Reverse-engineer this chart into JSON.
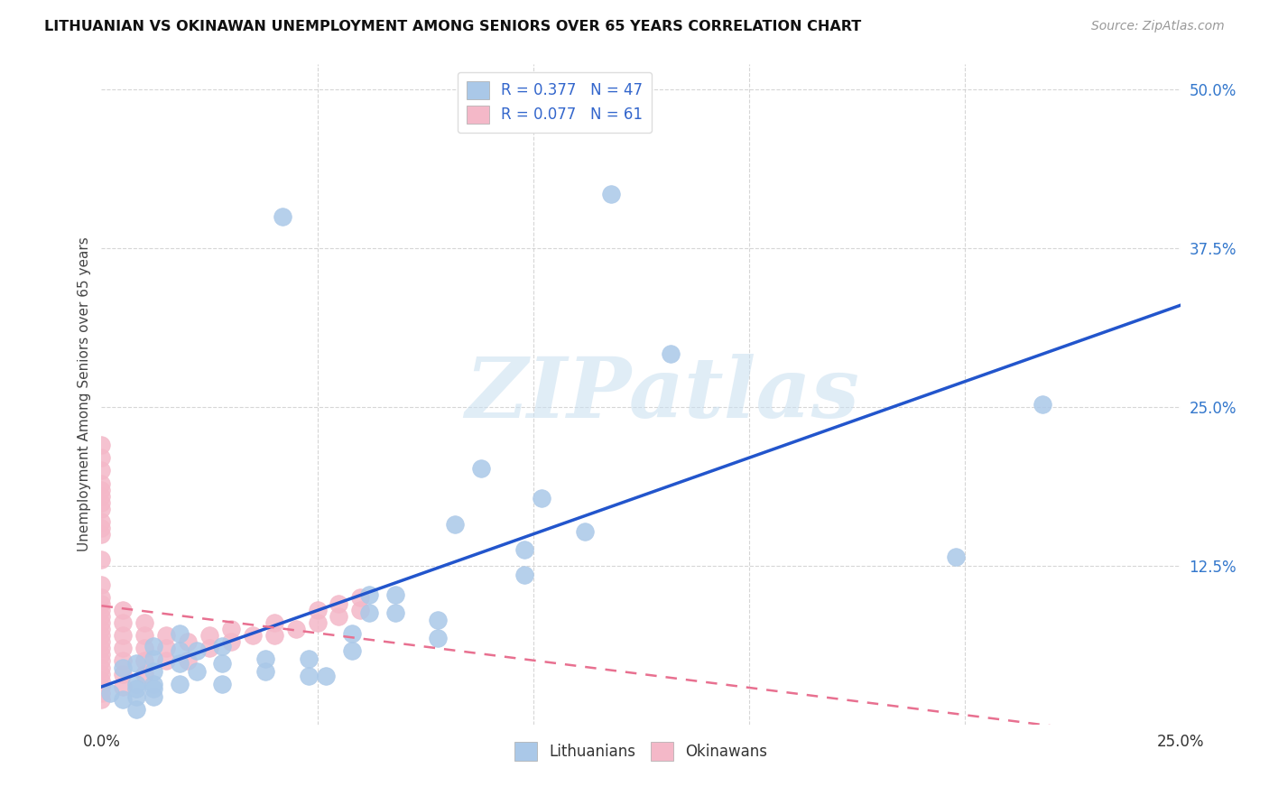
{
  "title": "LITHUANIAN VS OKINAWAN UNEMPLOYMENT AMONG SENIORS OVER 65 YEARS CORRELATION CHART",
  "source": "Source: ZipAtlas.com",
  "ylabel": "Unemployment Among Seniors over 65 years",
  "xlim": [
    0.0,
    0.25
  ],
  "ylim": [
    0.0,
    0.52
  ],
  "background_color": "#ffffff",
  "grid_color": "#cccccc",
  "scatter_blue_color": "#aac8e8",
  "scatter_blue_edge": "#aac8e8",
  "scatter_pink_color": "#f4b8c8",
  "scatter_pink_edge": "#f4b8c8",
  "trend_blue_color": "#2255cc",
  "trend_pink_color": "#e87090",
  "watermark_text": "ZIPatlas",
  "lit_R": 0.377,
  "lit_N": 47,
  "oki_R": 0.077,
  "oki_N": 61,
  "lit_x": [
    0.002,
    0.005,
    0.005,
    0.008,
    0.008,
    0.008,
    0.008,
    0.008,
    0.012,
    0.012,
    0.012,
    0.012,
    0.012,
    0.012,
    0.018,
    0.018,
    0.018,
    0.018,
    0.022,
    0.022,
    0.028,
    0.028,
    0.028,
    0.038,
    0.038,
    0.042,
    0.048,
    0.048,
    0.052,
    0.058,
    0.058,
    0.062,
    0.062,
    0.068,
    0.068,
    0.078,
    0.078,
    0.082,
    0.088,
    0.098,
    0.098,
    0.102,
    0.112,
    0.118,
    0.132,
    0.198,
    0.218
  ],
  "lit_y": [
    0.025,
    0.045,
    0.02,
    0.032,
    0.048,
    0.022,
    0.028,
    0.012,
    0.052,
    0.062,
    0.032,
    0.042,
    0.028,
    0.022,
    0.058,
    0.048,
    0.072,
    0.032,
    0.042,
    0.058,
    0.062,
    0.048,
    0.032,
    0.052,
    0.042,
    0.4,
    0.038,
    0.052,
    0.038,
    0.058,
    0.072,
    0.088,
    0.102,
    0.088,
    0.102,
    0.068,
    0.082,
    0.158,
    0.202,
    0.118,
    0.138,
    0.178,
    0.152,
    0.418,
    0.292,
    0.132,
    0.252
  ],
  "oki_x": [
    0.0,
    0.0,
    0.0,
    0.0,
    0.0,
    0.0,
    0.0,
    0.0,
    0.0,
    0.0,
    0.0,
    0.0,
    0.0,
    0.0,
    0.0,
    0.0,
    0.0,
    0.0,
    0.0,
    0.0,
    0.0,
    0.0,
    0.0,
    0.0,
    0.0,
    0.0,
    0.0,
    0.0,
    0.0,
    0.0,
    0.005,
    0.005,
    0.005,
    0.005,
    0.005,
    0.005,
    0.005,
    0.01,
    0.01,
    0.01,
    0.01,
    0.01,
    0.015,
    0.015,
    0.015,
    0.02,
    0.02,
    0.025,
    0.025,
    0.03,
    0.03,
    0.035,
    0.04,
    0.04,
    0.045,
    0.05,
    0.05,
    0.055,
    0.055,
    0.06,
    0.06
  ],
  "oki_y": [
    0.02,
    0.025,
    0.03,
    0.035,
    0.04,
    0.045,
    0.05,
    0.055,
    0.06,
    0.065,
    0.07,
    0.075,
    0.08,
    0.085,
    0.09,
    0.095,
    0.1,
    0.11,
    0.13,
    0.15,
    0.155,
    0.16,
    0.17,
    0.175,
    0.18,
    0.185,
    0.19,
    0.2,
    0.21,
    0.22,
    0.03,
    0.04,
    0.05,
    0.06,
    0.07,
    0.08,
    0.09,
    0.04,
    0.05,
    0.06,
    0.07,
    0.08,
    0.05,
    0.06,
    0.07,
    0.05,
    0.065,
    0.06,
    0.07,
    0.065,
    0.075,
    0.07,
    0.07,
    0.08,
    0.075,
    0.08,
    0.09,
    0.085,
    0.095,
    0.09,
    0.1
  ]
}
